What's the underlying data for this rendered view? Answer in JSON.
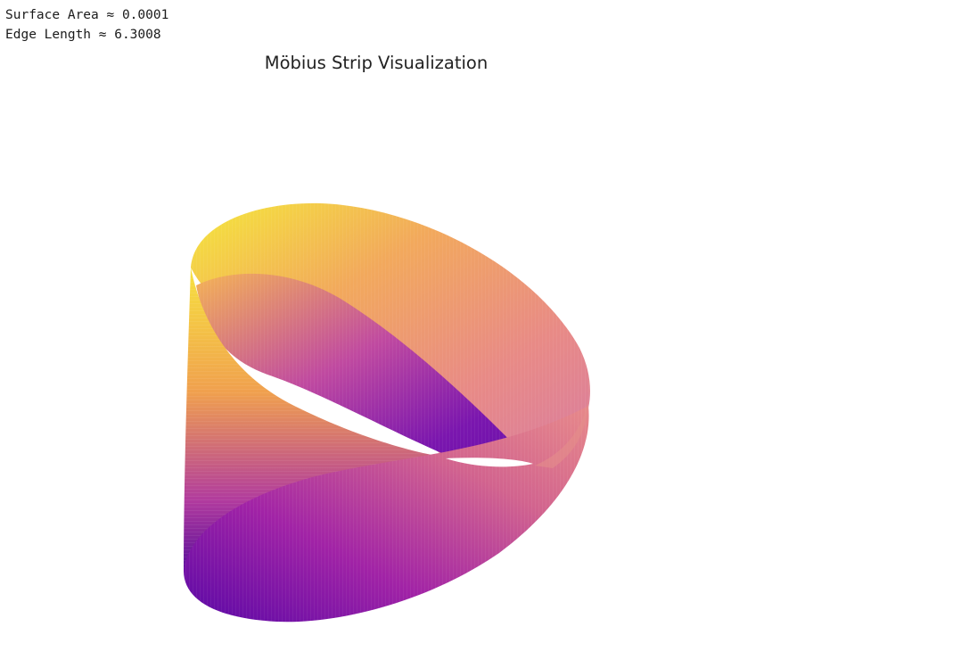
{
  "output": {
    "stdout_lines": [
      "Surface Area ≈ 0.0001",
      "Edge Length ≈ 6.3008"
    ]
  },
  "figure": {
    "title": "Möbius Strip Visualization",
    "colormap": "plasma",
    "colors": {
      "low": "#5a06a0",
      "mid_low": "#9b179e",
      "mid": "#cc4778",
      "mid_high": "#f0a060",
      "high": "#f5e83a"
    }
  }
}
